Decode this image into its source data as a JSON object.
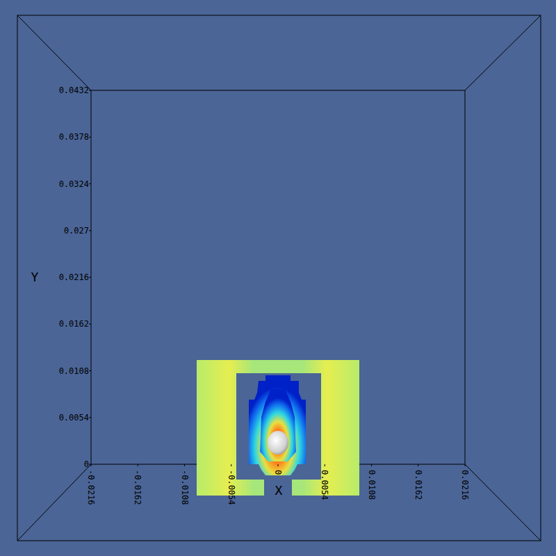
{
  "chart_data": {
    "type": "field_slice",
    "x_label": "X",
    "y_label": "Y",
    "xlim": [
      -0.0216,
      0.0216
    ],
    "ylim": [
      0,
      0.0432
    ],
    "xticks": [
      -0.0216,
      -0.0162,
      -0.0108,
      -0.0054,
      0,
      0.0054,
      0.0108,
      0.0162,
      0.0216
    ],
    "yticks": [
      0,
      0.0054,
      0.0108,
      0.0162,
      0.0216,
      0.027,
      0.0324,
      0.0378,
      0.0432
    ]
  }
}
